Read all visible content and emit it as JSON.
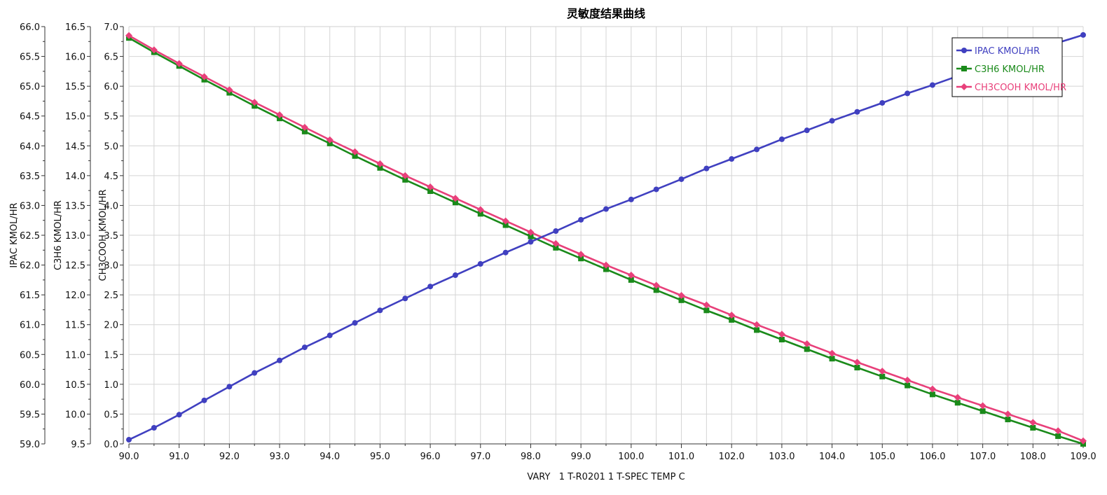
{
  "chart_data": {
    "type": "line",
    "title": "灵敏度结果曲线",
    "xlabel": "VARY   1 T-R0201 1 T-SPEC TEMP C",
    "x": [
      90.0,
      90.5,
      91.0,
      91.5,
      92.0,
      92.5,
      93.0,
      93.5,
      94.0,
      94.5,
      95.0,
      95.5,
      96.0,
      96.5,
      97.0,
      97.5,
      98.0,
      98.5,
      99.0,
      99.5,
      100.0,
      100.5,
      101.0,
      101.5,
      102.0,
      102.5,
      103.0,
      103.5,
      104.0,
      104.5,
      105.0,
      105.5,
      106.0,
      106.5,
      107.0,
      107.5,
      108.0,
      108.5,
      109.0
    ],
    "xlim": [
      90.0,
      109.0
    ],
    "x_ticks": [
      "90.0",
      "91.0",
      "92.0",
      "93.0",
      "94.0",
      "95.0",
      "96.0",
      "97.0",
      "98.0",
      "99.0",
      "100.0",
      "101.0",
      "102.0",
      "103.0",
      "104.0",
      "105.0",
      "106.0",
      "107.0",
      "108.0",
      "109.0"
    ],
    "y_axes": [
      {
        "label": "IPAC KMOL/HR",
        "range": [
          59.0,
          66.0
        ],
        "ticks": [
          "59.0",
          "59.5",
          "60.0",
          "60.5",
          "61.0",
          "61.5",
          "62.0",
          "62.5",
          "63.0",
          "63.5",
          "64.0",
          "64.5",
          "65.0",
          "65.5",
          "66.0"
        ]
      },
      {
        "label": "C3H6 KMOL/HR",
        "range": [
          9.5,
          16.5
        ],
        "ticks": [
          "9.5",
          "10.0",
          "10.5",
          "11.0",
          "11.5",
          "12.0",
          "12.5",
          "13.0",
          "13.5",
          "14.0",
          "14.5",
          "15.0",
          "15.5",
          "16.0",
          "16.5"
        ]
      },
      {
        "label": "CH3COOH KMOL/HR",
        "range": [
          0.0,
          7.0
        ],
        "ticks": [
          "0.0",
          "0.5",
          "1.0",
          "1.5",
          "2.0",
          "2.5",
          "3.0",
          "3.5",
          "4.0",
          "4.5",
          "5.0",
          "5.5",
          "6.0",
          "6.5",
          "7.0"
        ]
      }
    ],
    "series": [
      {
        "name": "IPAC KMOL/HR",
        "axis": 0,
        "color": "#4040c0",
        "marker": "circle",
        "values": [
          59.07,
          59.27,
          59.49,
          59.73,
          59.96,
          60.19,
          60.4,
          60.62,
          60.82,
          61.03,
          61.24,
          61.44,
          61.64,
          61.83,
          62.02,
          62.21,
          62.39,
          62.57,
          62.76,
          62.94,
          63.1,
          63.27,
          63.44,
          63.62,
          63.78,
          63.94,
          64.11,
          64.26,
          64.42,
          64.57,
          64.72,
          64.88,
          65.02,
          65.17,
          65.32,
          65.46,
          65.6,
          65.73,
          65.86
        ]
      },
      {
        "name": "C3H6 KMOL/HR",
        "axis": 1,
        "color": "#1a8a1a",
        "marker": "square",
        "values": [
          16.31,
          16.07,
          15.84,
          15.61,
          15.39,
          15.17,
          14.96,
          14.74,
          14.54,
          14.33,
          14.13,
          13.93,
          13.74,
          13.55,
          13.36,
          13.17,
          12.98,
          12.79,
          12.61,
          12.43,
          12.25,
          12.08,
          11.91,
          11.74,
          11.58,
          11.41,
          11.25,
          11.09,
          10.93,
          10.78,
          10.63,
          10.48,
          10.33,
          10.19,
          10.05,
          9.91,
          9.77,
          9.63,
          9.5
        ]
      },
      {
        "name": "CH3COOH KMOL/HR",
        "axis": 2,
        "color": "#e8407a",
        "marker": "diamond",
        "values": [
          6.85,
          6.61,
          6.38,
          6.16,
          5.94,
          5.73,
          5.52,
          5.31,
          5.1,
          4.9,
          4.7,
          4.5,
          4.31,
          4.12,
          3.93,
          3.74,
          3.55,
          3.36,
          3.18,
          3.0,
          2.83,
          2.66,
          2.49,
          2.33,
          2.16,
          2.0,
          1.84,
          1.68,
          1.52,
          1.37,
          1.22,
          1.07,
          0.92,
          0.78,
          0.64,
          0.5,
          0.36,
          0.22,
          0.05
        ]
      }
    ],
    "grid": true,
    "legend_position": "top-right"
  }
}
